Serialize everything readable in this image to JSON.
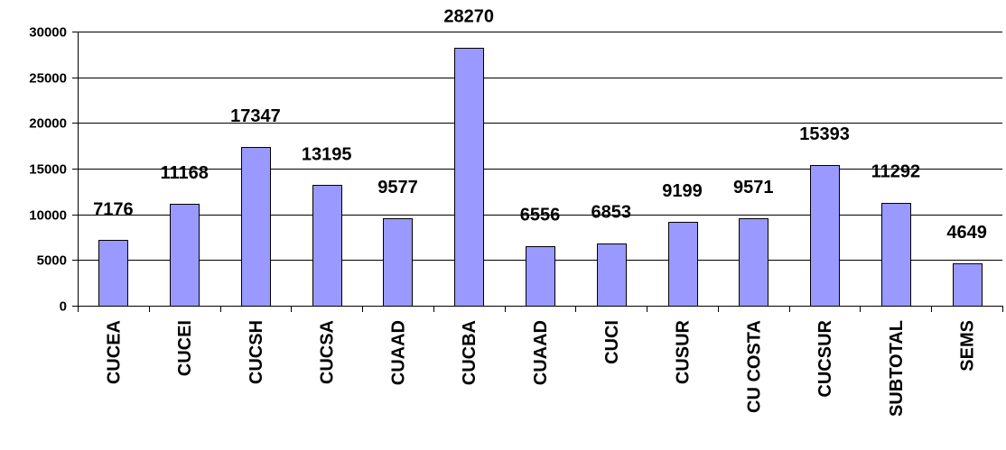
{
  "chart_data": {
    "type": "bar",
    "categories": [
      "CUCEA",
      "CUCEI",
      "CUCSH",
      "CUCSA",
      "CUAAD",
      "CUCBA",
      "CUAAD",
      "CUCI",
      "CUSUR",
      "CU COSTA",
      "CUCSUR",
      "SUBTOTAL",
      "SEMS"
    ],
    "values": [
      7176,
      11168,
      17347,
      13195,
      9577,
      28270,
      6556,
      6853,
      9199,
      9571,
      15393,
      11292,
      4649
    ],
    "title": "",
    "xlabel": "",
    "ylabel": "",
    "ylim": [
      0,
      30000
    ],
    "yticks": [
      0,
      5000,
      10000,
      15000,
      20000,
      25000,
      30000
    ],
    "grid": true,
    "legend": "none",
    "data_labels": true,
    "colors": {
      "bar_fill": "#9999ff",
      "bar_stroke": "#000000",
      "grid": "#000000",
      "axis": "#000000",
      "background": "#ffffff"
    }
  }
}
